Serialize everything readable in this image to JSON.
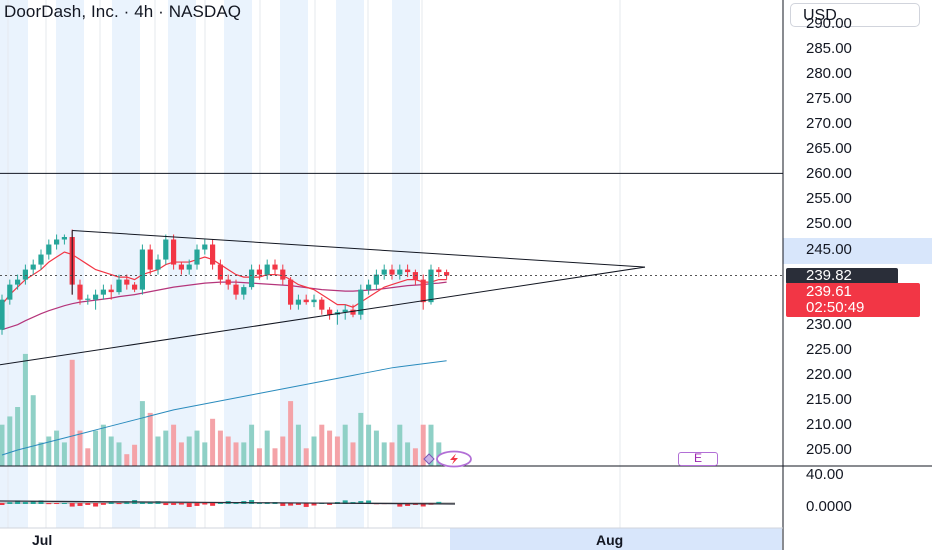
{
  "header": {
    "title": "DoorDash, Inc. · 4h · NASDAQ"
  },
  "currency_button": "USD",
  "price_axis": {
    "labels": [
      "290.00",
      "285.00",
      "280.00",
      "275.00",
      "270.00",
      "265.00",
      "260.00",
      "255.00",
      "250.00",
      "245.00",
      "230.00",
      "225.00",
      "220.00",
      "215.00",
      "210.00",
      "205.00"
    ],
    "highlighted": "245.00"
  },
  "indicator_axis": {
    "labels": [
      "40.00",
      "0.0000"
    ]
  },
  "current_price_badge": "239.82",
  "last_price_badge": {
    "price": "239.61",
    "countdown": "02:50:49"
  },
  "time_axis": {
    "labels": [
      "Jul",
      "Aug"
    ]
  },
  "earnings_marker": "E",
  "colors": {
    "up": "#26a69a",
    "down": "#f23645",
    "axis_highlight": "#d8e6fb",
    "session_shade": "#eaf3fd",
    "ma_fast": "#f23645",
    "ma_slow": "#b5357b",
    "ma_long": "#2a8bbd",
    "flash_icon": "#b26fd6"
  },
  "chart_data": {
    "type": "candlestick",
    "timeframe": "4h",
    "y_axis_range": [
      203,
      292
    ],
    "candles": [
      {
        "o": 229,
        "h": 236,
        "l": 228,
        "c": 235
      },
      {
        "o": 235,
        "h": 239,
        "l": 234,
        "c": 238
      },
      {
        "o": 238,
        "h": 240,
        "l": 237,
        "c": 239
      },
      {
        "o": 239,
        "h": 242,
        "l": 238,
        "c": 241
      },
      {
        "o": 241,
        "h": 243,
        "l": 240,
        "c": 242
      },
      {
        "o": 242,
        "h": 245,
        "l": 241,
        "c": 244
      },
      {
        "o": 244,
        "h": 247,
        "l": 243,
        "c": 246
      },
      {
        "o": 246,
        "h": 248,
        "l": 245,
        "c": 247
      },
      {
        "o": 247,
        "h": 248,
        "l": 246,
        "c": 247.5
      },
      {
        "o": 247.5,
        "h": 249,
        "l": 236,
        "c": 238
      },
      {
        "o": 238,
        "h": 239,
        "l": 234,
        "c": 235
      },
      {
        "o": 235,
        "h": 236,
        "l": 234,
        "c": 235.2
      },
      {
        "o": 235,
        "h": 237,
        "l": 233,
        "c": 236
      },
      {
        "o": 236,
        "h": 238,
        "l": 235,
        "c": 237
      },
      {
        "o": 237,
        "h": 238,
        "l": 235,
        "c": 236.5
      },
      {
        "o": 236.5,
        "h": 240,
        "l": 236,
        "c": 239
      },
      {
        "o": 239,
        "h": 240,
        "l": 237,
        "c": 238
      },
      {
        "o": 238,
        "h": 238.5,
        "l": 236.5,
        "c": 237
      },
      {
        "o": 237,
        "h": 246,
        "l": 236,
        "c": 245
      },
      {
        "o": 245,
        "h": 246,
        "l": 240,
        "c": 241
      },
      {
        "o": 241,
        "h": 244,
        "l": 240,
        "c": 243
      },
      {
        "o": 243,
        "h": 248,
        "l": 242,
        "c": 247
      },
      {
        "o": 247,
        "h": 248,
        "l": 241,
        "c": 242
      },
      {
        "o": 242,
        "h": 242.5,
        "l": 240,
        "c": 241
      },
      {
        "o": 241,
        "h": 243,
        "l": 240,
        "c": 242
      },
      {
        "o": 242,
        "h": 246,
        "l": 241,
        "c": 245
      },
      {
        "o": 245,
        "h": 247,
        "l": 244,
        "c": 246
      },
      {
        "o": 246,
        "h": 247,
        "l": 241,
        "c": 242
      },
      {
        "o": 242,
        "h": 243,
        "l": 238,
        "c": 239
      },
      {
        "o": 239,
        "h": 240,
        "l": 237,
        "c": 238
      },
      {
        "o": 238,
        "h": 239,
        "l": 235,
        "c": 236
      },
      {
        "o": 236,
        "h": 238,
        "l": 235,
        "c": 237.5
      },
      {
        "o": 237.5,
        "h": 242,
        "l": 237,
        "c": 241
      },
      {
        "o": 241,
        "h": 242,
        "l": 239,
        "c": 240
      },
      {
        "o": 240,
        "h": 243,
        "l": 239,
        "c": 242
      },
      {
        "o": 242,
        "h": 243,
        "l": 240,
        "c": 241
      },
      {
        "o": 241,
        "h": 242,
        "l": 238,
        "c": 239
      },
      {
        "o": 239,
        "h": 239.5,
        "l": 233,
        "c": 234
      },
      {
        "o": 234,
        "h": 236,
        "l": 233,
        "c": 235
      },
      {
        "o": 235,
        "h": 236,
        "l": 234,
        "c": 234.5
      },
      {
        "o": 234.5,
        "h": 236,
        "l": 233.5,
        "c": 235
      },
      {
        "o": 235,
        "h": 235.5,
        "l": 232,
        "c": 233
      },
      {
        "o": 233,
        "h": 233.5,
        "l": 231,
        "c": 232
      },
      {
        "o": 232,
        "h": 233,
        "l": 230,
        "c": 232.5
      },
      {
        "o": 232.5,
        "h": 234,
        "l": 231,
        "c": 233
      },
      {
        "o": 233,
        "h": 234,
        "l": 231.5,
        "c": 232
      },
      {
        "o": 232,
        "h": 238,
        "l": 231,
        "c": 237
      },
      {
        "o": 237,
        "h": 239,
        "l": 236,
        "c": 238
      },
      {
        "o": 238,
        "h": 241,
        "l": 237,
        "c": 240
      },
      {
        "o": 240,
        "h": 242,
        "l": 239,
        "c": 241
      },
      {
        "o": 241,
        "h": 242,
        "l": 239,
        "c": 240
      },
      {
        "o": 240,
        "h": 242,
        "l": 239,
        "c": 241
      },
      {
        "o": 241,
        "h": 242,
        "l": 239.5,
        "c": 240.5
      },
      {
        "o": 240.5,
        "h": 241,
        "l": 238,
        "c": 239
      },
      {
        "o": 239,
        "h": 240,
        "l": 233,
        "c": 234.5
      },
      {
        "o": 234.5,
        "h": 242,
        "l": 234,
        "c": 241
      },
      {
        "o": 241,
        "h": 241.5,
        "l": 239.5,
        "c": 240.5
      },
      {
        "o": 240.5,
        "h": 241,
        "l": 239,
        "c": 239.8
      }
    ],
    "volume": [
      {
        "v": 0.35,
        "up": true
      },
      {
        "v": 0.42,
        "up": true
      },
      {
        "v": 0.5,
        "up": true
      },
      {
        "v": 0.95,
        "up": true
      },
      {
        "v": 0.6,
        "up": true
      },
      {
        "v": 0.2,
        "up": true
      },
      {
        "v": 0.25,
        "up": true
      },
      {
        "v": 0.3,
        "up": true
      },
      {
        "v": 0.2,
        "up": true
      },
      {
        "v": 0.9,
        "up": false
      },
      {
        "v": 0.3,
        "up": false
      },
      {
        "v": 0.15,
        "up": false
      },
      {
        "v": 0.3,
        "up": true
      },
      {
        "v": 0.35,
        "up": true
      },
      {
        "v": 0.25,
        "up": true
      },
      {
        "v": 0.2,
        "up": true
      },
      {
        "v": 0.1,
        "up": false
      },
      {
        "v": 0.18,
        "up": false
      },
      {
        "v": 0.55,
        "up": true
      },
      {
        "v": 0.45,
        "up": false
      },
      {
        "v": 0.25,
        "up": true
      },
      {
        "v": 0.3,
        "up": true
      },
      {
        "v": 0.35,
        "up": false
      },
      {
        "v": 0.2,
        "up": false
      },
      {
        "v": 0.25,
        "up": true
      },
      {
        "v": 0.3,
        "up": true
      },
      {
        "v": 0.2,
        "up": true
      },
      {
        "v": 0.4,
        "up": false
      },
      {
        "v": 0.3,
        "up": false
      },
      {
        "v": 0.25,
        "up": false
      },
      {
        "v": 0.2,
        "up": false
      },
      {
        "v": 0.2,
        "up": true
      },
      {
        "v": 0.35,
        "up": true
      },
      {
        "v": 0.15,
        "up": false
      },
      {
        "v": 0.3,
        "up": true
      },
      {
        "v": 0.15,
        "up": false
      },
      {
        "v": 0.25,
        "up": false
      },
      {
        "v": 0.55,
        "up": false
      },
      {
        "v": 0.35,
        "up": true
      },
      {
        "v": 0.15,
        "up": false
      },
      {
        "v": 0.25,
        "up": true
      },
      {
        "v": 0.35,
        "up": false
      },
      {
        "v": 0.3,
        "up": false
      },
      {
        "v": 0.25,
        "up": false
      },
      {
        "v": 0.35,
        "up": true
      },
      {
        "v": 0.2,
        "up": false
      },
      {
        "v": 0.45,
        "up": true
      },
      {
        "v": 0.35,
        "up": true
      },
      {
        "v": 0.3,
        "up": true
      },
      {
        "v": 0.2,
        "up": true
      },
      {
        "v": 0.2,
        "up": false
      },
      {
        "v": 0.35,
        "up": true
      },
      {
        "v": 0.2,
        "up": true
      },
      {
        "v": 0.15,
        "up": false
      },
      {
        "v": 0.35,
        "up": false
      },
      {
        "v": 0.35,
        "up": true
      },
      {
        "v": 0.2,
        "up": true
      },
      {
        "v": 0.1,
        "up": false
      }
    ],
    "horizontal_line": 260.2,
    "dotted_current_price": 239.82,
    "triangle": {
      "upper": [
        [
          9,
          248.8
        ],
        [
          58,
          241.5
        ]
      ],
      "lower": [
        [
          0,
          222
        ],
        [
          58,
          241.5
        ]
      ]
    },
    "ma_fast": [
      234,
      236,
      237.5,
      239,
      240,
      241,
      242.5,
      243.5,
      244.5,
      244,
      243,
      242,
      241,
      240.5,
      240,
      239.5,
      239.5,
      239,
      240,
      240.5,
      241,
      242,
      242.5,
      242.5,
      242.5,
      243,
      243.5,
      243,
      242,
      241,
      240,
      239.5,
      239.5,
      239.5,
      240,
      240,
      239.8,
      239,
      238,
      237.5,
      237,
      236,
      235,
      234,
      234,
      233.5,
      234.5,
      235.5,
      236.5,
      237.5,
      238,
      238.5,
      239,
      239,
      238.5,
      238.5,
      239,
      239
    ],
    "ma_slow": [
      229,
      229.5,
      230,
      230.8,
      231.5,
      232.2,
      232.8,
      233.3,
      233.8,
      234.2,
      234.5,
      234.7,
      234.9,
      235.1,
      235.3,
      235.6,
      235.8,
      236,
      236.3,
      236.6,
      236.9,
      237.2,
      237.5,
      237.7,
      237.9,
      238.1,
      238.3,
      238.4,
      238.5,
      238.5,
      238.5,
      238.4,
      238.3,
      238.2,
      238.1,
      238,
      237.9,
      237.8,
      237.6,
      237.4,
      237.2,
      237,
      236.9,
      236.8,
      236.7,
      236.7,
      236.8,
      236.9,
      237,
      237.2,
      237.4,
      237.6,
      237.8,
      237.9,
      238,
      238.2,
      238.3,
      238.5
    ],
    "ma_long": [
      204,
      204.5,
      205,
      205.4,
      205.8,
      206.2,
      206.6,
      207,
      207.4,
      207.8,
      208.2,
      208.6,
      209,
      209.4,
      209.8,
      210.2,
      210.6,
      211,
      211.4,
      211.8,
      212.2,
      212.6,
      213,
      213.3,
      213.6,
      213.9,
      214.2,
      214.5,
      214.8,
      215.1,
      215.4,
      215.7,
      216,
      216.3,
      216.6,
      216.9,
      217.2,
      217.5,
      217.8,
      218.1,
      218.4,
      218.7,
      219,
      219.3,
      219.6,
      219.9,
      220.2,
      220.5,
      220.8,
      221.1,
      221.4,
      221.6,
      221.8,
      222,
      222.2,
      222.4,
      222.6,
      222.8
    ]
  }
}
